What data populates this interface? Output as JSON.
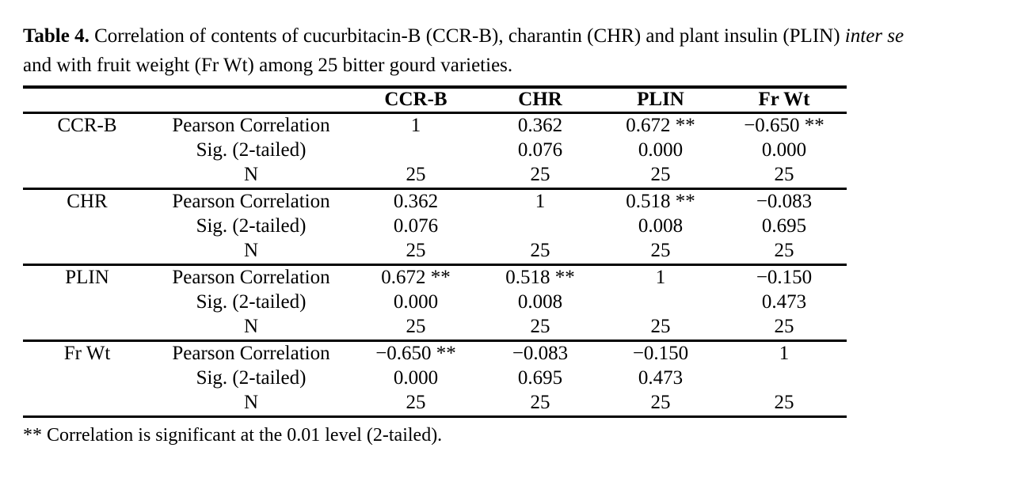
{
  "caption": {
    "label": "Table 4.",
    "line1_text": " Correlation of contents of cucurbitacin-B (CCR-B), charantin (CHR) and plant insulin (PLIN) ",
    "line1_italic": "inter se",
    "line2_text": "and with fruit weight (Fr Wt) among 25 bitter gourd varieties."
  },
  "table": {
    "col_headers": [
      "CCR-B",
      "CHR",
      "PLIN",
      "Fr Wt"
    ],
    "groups": [
      {
        "label": "CCR-B",
        "rows": [
          {
            "stat": "Pearson Correlation",
            "values": [
              "1",
              "0.362",
              "0.672 **",
              "−0.650 **"
            ]
          },
          {
            "stat": "Sig. (2-tailed)",
            "values": [
              "",
              "0.076",
              "0.000",
              "0.000"
            ]
          },
          {
            "stat": "N",
            "values": [
              "25",
              "25",
              "25",
              "25"
            ]
          }
        ]
      },
      {
        "label": "CHR",
        "rows": [
          {
            "stat": "Pearson Correlation",
            "values": [
              "0.362",
              "1",
              "0.518 **",
              "−0.083"
            ]
          },
          {
            "stat": "Sig. (2-tailed)",
            "values": [
              "0.076",
              "",
              "0.008",
              "0.695"
            ]
          },
          {
            "stat": "N",
            "values": [
              "25",
              "25",
              "25",
              "25"
            ]
          }
        ]
      },
      {
        "label": "PLIN",
        "rows": [
          {
            "stat": "Pearson Correlation",
            "values": [
              "0.672 **",
              "0.518 **",
              "1",
              "−0.150"
            ]
          },
          {
            "stat": "Sig. (2-tailed)",
            "values": [
              "0.000",
              "0.008",
              "",
              "0.473"
            ]
          },
          {
            "stat": "N",
            "values": [
              "25",
              "25",
              "25",
              "25"
            ]
          }
        ]
      },
      {
        "label": "Fr Wt",
        "rows": [
          {
            "stat": "Pearson Correlation",
            "values": [
              "−0.650 **",
              "−0.083",
              "−0.150",
              "1"
            ]
          },
          {
            "stat": "Sig. (2-tailed)",
            "values": [
              "0.000",
              "0.695",
              "0.473",
              ""
            ]
          },
          {
            "stat": "N",
            "values": [
              "25",
              "25",
              "25",
              "25"
            ]
          }
        ]
      }
    ]
  },
  "footnote": "** Correlation is significant at the 0.01 level (2-tailed)."
}
